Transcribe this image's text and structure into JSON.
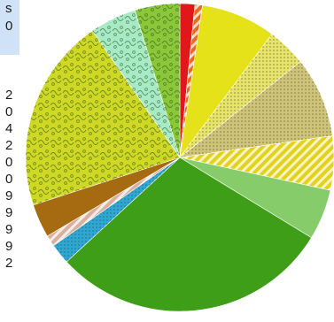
{
  "left_table": {
    "header": [
      "s",
      "0"
    ],
    "row_tail_digits": [
      "2",
      "0",
      "4",
      "2",
      "0",
      "0",
      "9",
      "9",
      "9",
      "9",
      "2"
    ]
  },
  "chart_data": {
    "type": "pie",
    "title": "",
    "slices": [
      {
        "value": 1.6,
        "color": "#e01818",
        "pattern": "solid"
      },
      {
        "value": 0.8,
        "color": "#e86a1c",
        "pattern": "hatch"
      },
      {
        "value": 8.0,
        "color": "#e6e21a",
        "pattern": "solid"
      },
      {
        "value": 4.2,
        "color": "#e8e46a",
        "pattern": "dots"
      },
      {
        "value": 8.6,
        "color": "#cfc47a",
        "pattern": "dots"
      },
      {
        "value": 5.8,
        "color": "#e2d21c",
        "pattern": "hatch"
      },
      {
        "value": 5.4,
        "color": "#86cc6a",
        "pattern": "solid"
      },
      {
        "value": 30.0,
        "color": "#3f9e18",
        "pattern": "solid"
      },
      {
        "value": 2.2,
        "color": "#2aa8d8",
        "pattern": "dots"
      },
      {
        "value": 1.2,
        "color": "#d8b0a0",
        "pattern": "hatch"
      },
      {
        "value": 3.6,
        "color": "#a66a10",
        "pattern": "solid"
      },
      {
        "value": 20.8,
        "color": "#cfd824",
        "pattern": "squiggle"
      },
      {
        "value": 5.0,
        "color": "#a6eac6",
        "pattern": "squiggle"
      },
      {
        "value": 4.8,
        "color": "#8ac83a",
        "pattern": "squiggle"
      }
    ]
  }
}
